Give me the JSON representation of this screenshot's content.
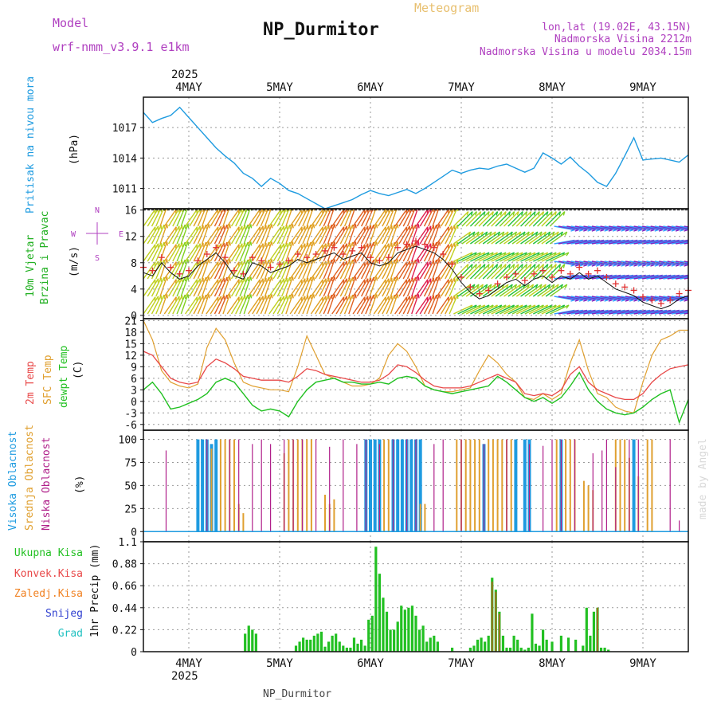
{
  "header": {
    "model_label": "Model",
    "model_name": "wrf-nmm_v3.9.1  e1km",
    "station": "NP_Durmitor",
    "meteogram": "Meteogram",
    "lonlat": "lon,lat (19.02E, 43.15N)",
    "altitude": "Nadmorska Visina 2212m",
    "model_altitude": "Nadmorska Visina u modelu 2034.15m",
    "footer_station": "NP_Durmitor",
    "credit": "made by Angel",
    "year": "2025"
  },
  "colors": {
    "pressure": "#1e9be0",
    "wind": "#22b022",
    "temp2m": "#e84848",
    "sfc": "#e0a030",
    "dewpt": "#20c020",
    "high_cloud": "#1e9be0",
    "mid_cloud": "#e0a030",
    "low_cloud": "#b0208a",
    "total_precip": "#22c022",
    "conv_precip": "#e84848",
    "freezing": "#f08020",
    "snow": "#3040d0",
    "hail": "#20c0c0",
    "compass": "#b040c0"
  },
  "chart_data": [
    {
      "type": "line",
      "panel": "pressure",
      "ylabel_title": "Pritisak na nivou mora",
      "ylabel_unit": "(hPa)",
      "ylim": [
        1009,
        1020
      ],
      "yticks": [
        1011,
        1014,
        1017
      ],
      "grid": true,
      "x_unit": "days from 4MAY 00UTC",
      "x": [
        -0.5,
        -0.4,
        -0.3,
        -0.2,
        -0.1,
        0,
        0.1,
        0.2,
        0.3,
        0.4,
        0.5,
        0.6,
        0.7,
        0.8,
        0.9,
        1.0,
        1.1,
        1.2,
        1.3,
        1.4,
        1.5,
        1.6,
        1.7,
        1.8,
        1.9,
        2.0,
        2.1,
        2.2,
        2.3,
        2.4,
        2.5,
        2.6,
        2.7,
        2.8,
        2.9,
        3.0,
        3.1,
        3.2,
        3.3,
        3.4,
        3.5,
        3.6,
        3.7,
        3.8,
        3.9,
        4.0,
        4.1,
        4.2,
        4.3,
        4.4,
        4.5,
        4.6,
        4.7,
        4.8,
        4.9,
        5.0,
        5.1,
        5.2,
        5.3,
        5.4,
        5.5
      ],
      "values": [
        1018.5,
        1017.5,
        1017.9,
        1018.2,
        1019.0,
        1018.0,
        1017.0,
        1016.0,
        1015.0,
        1014.2,
        1013.5,
        1012.5,
        1012.0,
        1011.2,
        1012.0,
        1011.5,
        1010.8,
        1010.5,
        1010.0,
        1009.5,
        1009.0,
        1009.3,
        1009.6,
        1009.9,
        1010.4,
        1010.8,
        1010.5,
        1010.3,
        1010.6,
        1010.9,
        1010.5,
        1011.0,
        1011.6,
        1012.2,
        1012.8,
        1012.5,
        1012.8,
        1013.0,
        1012.9,
        1013.2,
        1013.4,
        1013.0,
        1012.6,
        1013.0,
        1014.5,
        1014.0,
        1013.4,
        1014.1,
        1013.2,
        1012.5,
        1011.6,
        1011.2,
        1012.5,
        1014.2,
        1016.0,
        1013.8,
        1013.9,
        1014.0,
        1013.8,
        1013.6,
        1014.3
      ]
    },
    {
      "type": "line",
      "panel": "wind",
      "ylabel_title": "10m Vjetar",
      "ylabel_sub": "Brzina i Pravac",
      "ylabel_unit": "(m/s)",
      "compass_labels": [
        "N",
        "E",
        "S",
        "W"
      ],
      "ylim": [
        -0.5,
        16.2
      ],
      "yticks": [
        0,
        4,
        8,
        12,
        16
      ],
      "grid": true,
      "x_unit": "days from 4MAY 00UTC",
      "x": [
        -0.5,
        -0.4,
        -0.3,
        -0.2,
        -0.1,
        0,
        0.1,
        0.2,
        0.3,
        0.4,
        0.5,
        0.6,
        0.7,
        0.8,
        0.9,
        1.0,
        1.1,
        1.2,
        1.3,
        1.4,
        1.5,
        1.6,
        1.7,
        1.8,
        1.9,
        2.0,
        2.1,
        2.2,
        2.3,
        2.4,
        2.5,
        2.6,
        2.7,
        2.8,
        2.9,
        3.0,
        3.1,
        3.2,
        3.3,
        3.4,
        3.5,
        3.6,
        3.7,
        3.8,
        3.9,
        4.0,
        4.1,
        4.2,
        4.3,
        4.4,
        4.5,
        4.6,
        4.7,
        4.8,
        4.9,
        5.0,
        5.1,
        5.2,
        5.3,
        5.4,
        5.5
      ],
      "values": [
        6.5,
        6.0,
        8.0,
        6.5,
        5.5,
        6.0,
        7.5,
        8.5,
        9.5,
        8.0,
        6.0,
        5.5,
        8.0,
        7.5,
        6.5,
        7.0,
        7.5,
        8.5,
        8.0,
        8.5,
        9.0,
        9.5,
        8.5,
        9.0,
        9.5,
        8.0,
        7.5,
        8.0,
        9.5,
        10.0,
        10.5,
        10.0,
        9.5,
        8.5,
        7.0,
        5.0,
        3.5,
        2.5,
        3.0,
        4.0,
        5.0,
        5.5,
        4.5,
        5.5,
        6.0,
        5.0,
        6.0,
        5.5,
        6.5,
        5.5,
        6.0,
        5.0,
        4.0,
        3.5,
        3.0,
        2.0,
        1.5,
        1.0,
        1.5,
        2.5,
        3.0
      ]
    },
    {
      "type": "line",
      "panel": "temperature",
      "series_labels": [
        "2m Temp",
        "SFC Temp",
        "dewpt Temp"
      ],
      "ylabel_unit": "(C)",
      "ylim": [
        -7.5,
        21.5
      ],
      "yticks": [
        -6,
        -3,
        0,
        3,
        6,
        9,
        12,
        15,
        18,
        21
      ],
      "grid": true,
      "x_unit": "days from 4MAY 00UTC",
      "x": [
        -0.5,
        -0.4,
        -0.3,
        -0.2,
        -0.1,
        0,
        0.1,
        0.2,
        0.3,
        0.4,
        0.5,
        0.6,
        0.7,
        0.8,
        0.9,
        1.0,
        1.1,
        1.2,
        1.3,
        1.4,
        1.5,
        1.6,
        1.7,
        1.8,
        1.9,
        2.0,
        2.1,
        2.2,
        2.3,
        2.4,
        2.5,
        2.6,
        2.7,
        2.8,
        2.9,
        3.0,
        3.1,
        3.2,
        3.3,
        3.4,
        3.5,
        3.6,
        3.7,
        3.8,
        3.9,
        4.0,
        4.1,
        4.2,
        4.3,
        4.4,
        4.5,
        4.6,
        4.7,
        4.8,
        4.9,
        5.0,
        5.1,
        5.2,
        5.3,
        5.4,
        5.5
      ],
      "series": [
        {
          "key": "temp2m",
          "values": [
            13.0,
            12.0,
            9.0,
            6.0,
            5.0,
            4.5,
            5.0,
            9.0,
            11.0,
            10.0,
            8.5,
            6.5,
            6.0,
            5.5,
            5.5,
            5.5,
            5.0,
            6.5,
            8.5,
            8.0,
            7.0,
            6.5,
            6.0,
            5.5,
            5.0,
            5.0,
            5.5,
            7.0,
            9.5,
            9.0,
            7.5,
            5.5,
            4.0,
            3.5,
            3.5,
            3.5,
            4.0,
            5.0,
            6.0,
            7.0,
            6.0,
            5.0,
            2.0,
            1.5,
            2.0,
            1.5,
            3.0,
            7.0,
            9.0,
            5.0,
            3.0,
            2.0,
            1.0,
            0.5,
            0.5,
            2.0,
            5.0,
            7.0,
            8.5,
            9.0,
            9.5
          ]
        },
        {
          "key": "sfc",
          "values": [
            21.0,
            16.0,
            8.0,
            5.0,
            4.0,
            3.5,
            4.5,
            14.0,
            19.0,
            16.0,
            10.0,
            5.0,
            4.0,
            3.5,
            3.0,
            3.0,
            2.5,
            9.0,
            17.0,
            12.0,
            7.0,
            6.0,
            5.0,
            4.0,
            4.0,
            4.5,
            6.0,
            12.0,
            15.0,
            13.0,
            9.0,
            4.0,
            3.0,
            2.5,
            2.5,
            3.0,
            3.5,
            8.0,
            12.0,
            10.0,
            7.0,
            5.0,
            1.0,
            0.5,
            2.0,
            0.5,
            2.0,
            10.0,
            16.0,
            8.0,
            2.0,
            1.0,
            -1.5,
            -2.5,
            -3.0,
            5.0,
            12.0,
            16.0,
            17.0,
            18.5,
            18.5
          ]
        },
        {
          "key": "dewpt",
          "values": [
            3.0,
            5.0,
            2.0,
            -2.0,
            -1.5,
            -0.5,
            0.5,
            2.0,
            5.0,
            6.0,
            5.0,
            2.0,
            -1.0,
            -2.5,
            -2.0,
            -2.5,
            -4.0,
            0.0,
            3.0,
            5.0,
            5.5,
            6.0,
            5.0,
            5.0,
            4.5,
            4.5,
            5.0,
            4.5,
            6.0,
            6.5,
            6.0,
            4.0,
            3.0,
            2.5,
            2.0,
            2.5,
            3.0,
            3.5,
            4.0,
            6.5,
            5.0,
            3.0,
            1.0,
            0.0,
            1.0,
            -0.5,
            1.0,
            4.0,
            7.5,
            3.0,
            0.0,
            -2.0,
            -3.0,
            -3.5,
            -3.0,
            -1.5,
            0.5,
            2.0,
            3.0,
            -5.5,
            0.5
          ]
        }
      ]
    },
    {
      "type": "bar",
      "panel": "clouds",
      "series_labels": [
        "Visoka Oblacnost",
        "Srednja Oblacnost",
        "Niska Oblacnost"
      ],
      "ylabel_unit": "(%)",
      "ylim": [
        0,
        100
      ],
      "yticks": [
        0,
        25,
        50,
        75,
        100
      ],
      "grid": true,
      "x_unit": "days from 4MAY 00UTC",
      "high_times": [
        0.1,
        0.15,
        0.2,
        0.25,
        0.3,
        1.95,
        2.0,
        2.05,
        2.1,
        2.25,
        2.3,
        2.35,
        2.4,
        2.45,
        2.5,
        2.55,
        3.25,
        3.6,
        3.7,
        3.75,
        4.1,
        4.9
      ],
      "high_values": [
        100,
        100,
        100,
        95,
        100,
        100,
        100,
        100,
        100,
        100,
        100,
        100,
        100,
        100,
        100,
        100,
        95,
        100,
        100,
        100,
        100,
        100
      ],
      "mid_times": [
        0.25,
        0.35,
        0.4,
        0.45,
        0.5,
        0.55,
        0.6,
        1.05,
        1.1,
        1.15,
        1.2,
        1.25,
        1.3,
        1.35,
        1.5,
        1.55,
        1.6,
        2.15,
        2.2,
        2.55,
        2.6,
        2.95,
        3.0,
        3.05,
        3.1,
        3.15,
        3.2,
        3.3,
        3.35,
        3.4,
        3.45,
        3.5,
        3.55,
        4.05,
        4.15,
        4.2,
        4.25,
        4.35,
        4.4,
        4.45,
        4.7,
        4.75,
        4.8,
        4.85,
        4.95,
        5.05,
        5.1
      ],
      "mid_values": [
        90,
        100,
        100,
        100,
        100,
        30,
        20,
        85,
        100,
        100,
        100,
        100,
        100,
        100,
        40,
        30,
        35,
        100,
        100,
        30,
        30,
        100,
        100,
        100,
        100,
        100,
        100,
        100,
        100,
        100,
        100,
        100,
        100,
        100,
        100,
        100,
        100,
        55,
        50,
        45,
        100,
        100,
        100,
        80,
        60,
        100,
        100
      ],
      "low_times": [
        -0.25,
        0.2,
        0.45,
        0.55,
        0.7,
        0.8,
        0.9,
        1.05,
        1.15,
        1.25,
        1.4,
        1.55,
        1.7,
        1.85,
        1.95,
        2.1,
        2.25,
        2.4,
        2.5,
        2.7,
        2.8,
        3.0,
        3.25,
        3.5,
        3.75,
        3.9,
        4.0,
        4.1,
        4.25,
        4.45,
        4.55,
        4.6,
        4.7,
        4.85,
        4.95,
        5.3,
        5.4
      ],
      "low_values": [
        88,
        100,
        100,
        100,
        95,
        100,
        95,
        100,
        100,
        100,
        100,
        92,
        100,
        95,
        100,
        95,
        100,
        100,
        100,
        95,
        100,
        100,
        95,
        100,
        95,
        93,
        100,
        100,
        100,
        85,
        88,
        100,
        70,
        100,
        100,
        100,
        12
      ]
    },
    {
      "type": "bar",
      "panel": "precip",
      "series_labels": [
        "Ukupna Kisa",
        "Konvek.Kisa",
        "Zaledj.Kisa",
        "Snijeg",
        "Grad"
      ],
      "ylabel": "1hr Precip (mm)",
      "ylim": [
        0,
        1.1
      ],
      "yticks": [
        0,
        0.22,
        0.44,
        0.66,
        0.88,
        1.1
      ],
      "grid": true,
      "x_unit": "days from 4MAY 00UTC",
      "total_times": [
        0.62,
        0.66,
        0.7,
        0.74,
        1.18,
        1.22,
        1.26,
        1.3,
        1.34,
        1.38,
        1.42,
        1.46,
        1.5,
        1.54,
        1.58,
        1.62,
        1.66,
        1.7,
        1.74,
        1.78,
        1.82,
        1.86,
        1.9,
        1.94,
        1.98,
        2.02,
        2.06,
        2.1,
        2.14,
        2.18,
        2.22,
        2.26,
        2.3,
        2.34,
        2.38,
        2.42,
        2.46,
        2.5,
        2.54,
        2.58,
        2.62,
        2.66,
        2.7,
        2.74,
        2.9,
        3.1,
        3.14,
        3.18,
        3.22,
        3.26,
        3.3,
        3.34,
        3.38,
        3.42,
        3.46,
        3.5,
        3.54,
        3.58,
        3.62,
        3.66,
        3.7,
        3.74,
        3.78,
        3.82,
        3.86,
        3.9,
        3.94,
        4.0,
        4.1,
        4.18,
        4.26,
        4.34,
        4.38,
        4.42,
        4.46,
        4.5,
        4.54,
        4.58,
        4.62
      ],
      "total_values": [
        0.18,
        0.26,
        0.22,
        0.18,
        0.06,
        0.1,
        0.14,
        0.12,
        0.12,
        0.16,
        0.18,
        0.2,
        0.05,
        0.1,
        0.16,
        0.18,
        0.1,
        0.06,
        0.04,
        0.04,
        0.14,
        0.08,
        0.12,
        0.06,
        0.32,
        0.36,
        1.05,
        0.78,
        0.54,
        0.4,
        0.22,
        0.22,
        0.3,
        0.46,
        0.42,
        0.44,
        0.46,
        0.36,
        0.22,
        0.26,
        0.1,
        0.14,
        0.16,
        0.1,
        0.04,
        0.04,
        0.06,
        0.12,
        0.14,
        0.1,
        0.16,
        0.74,
        0.62,
        0.4,
        0.16,
        0.04,
        0.04,
        0.16,
        0.12,
        0.04,
        0.02,
        0.04,
        0.38,
        0.08,
        0.06,
        0.22,
        0.12,
        0.1,
        0.16,
        0.14,
        0.12,
        0.06,
        0.44,
        0.16,
        0.4,
        0.44,
        0.04,
        0.04,
        0.02
      ],
      "conv_times": [
        3.34,
        3.38,
        3.42,
        4.5
      ],
      "conv_values": [
        0.7,
        0.6,
        0.38,
        0.44
      ]
    }
  ],
  "x_axis": {
    "days": [
      "4MAY",
      "5MAY",
      "6MAY",
      "7MAY",
      "8MAY",
      "9MAY"
    ],
    "xlim": [
      -0.5,
      5.5
    ]
  }
}
